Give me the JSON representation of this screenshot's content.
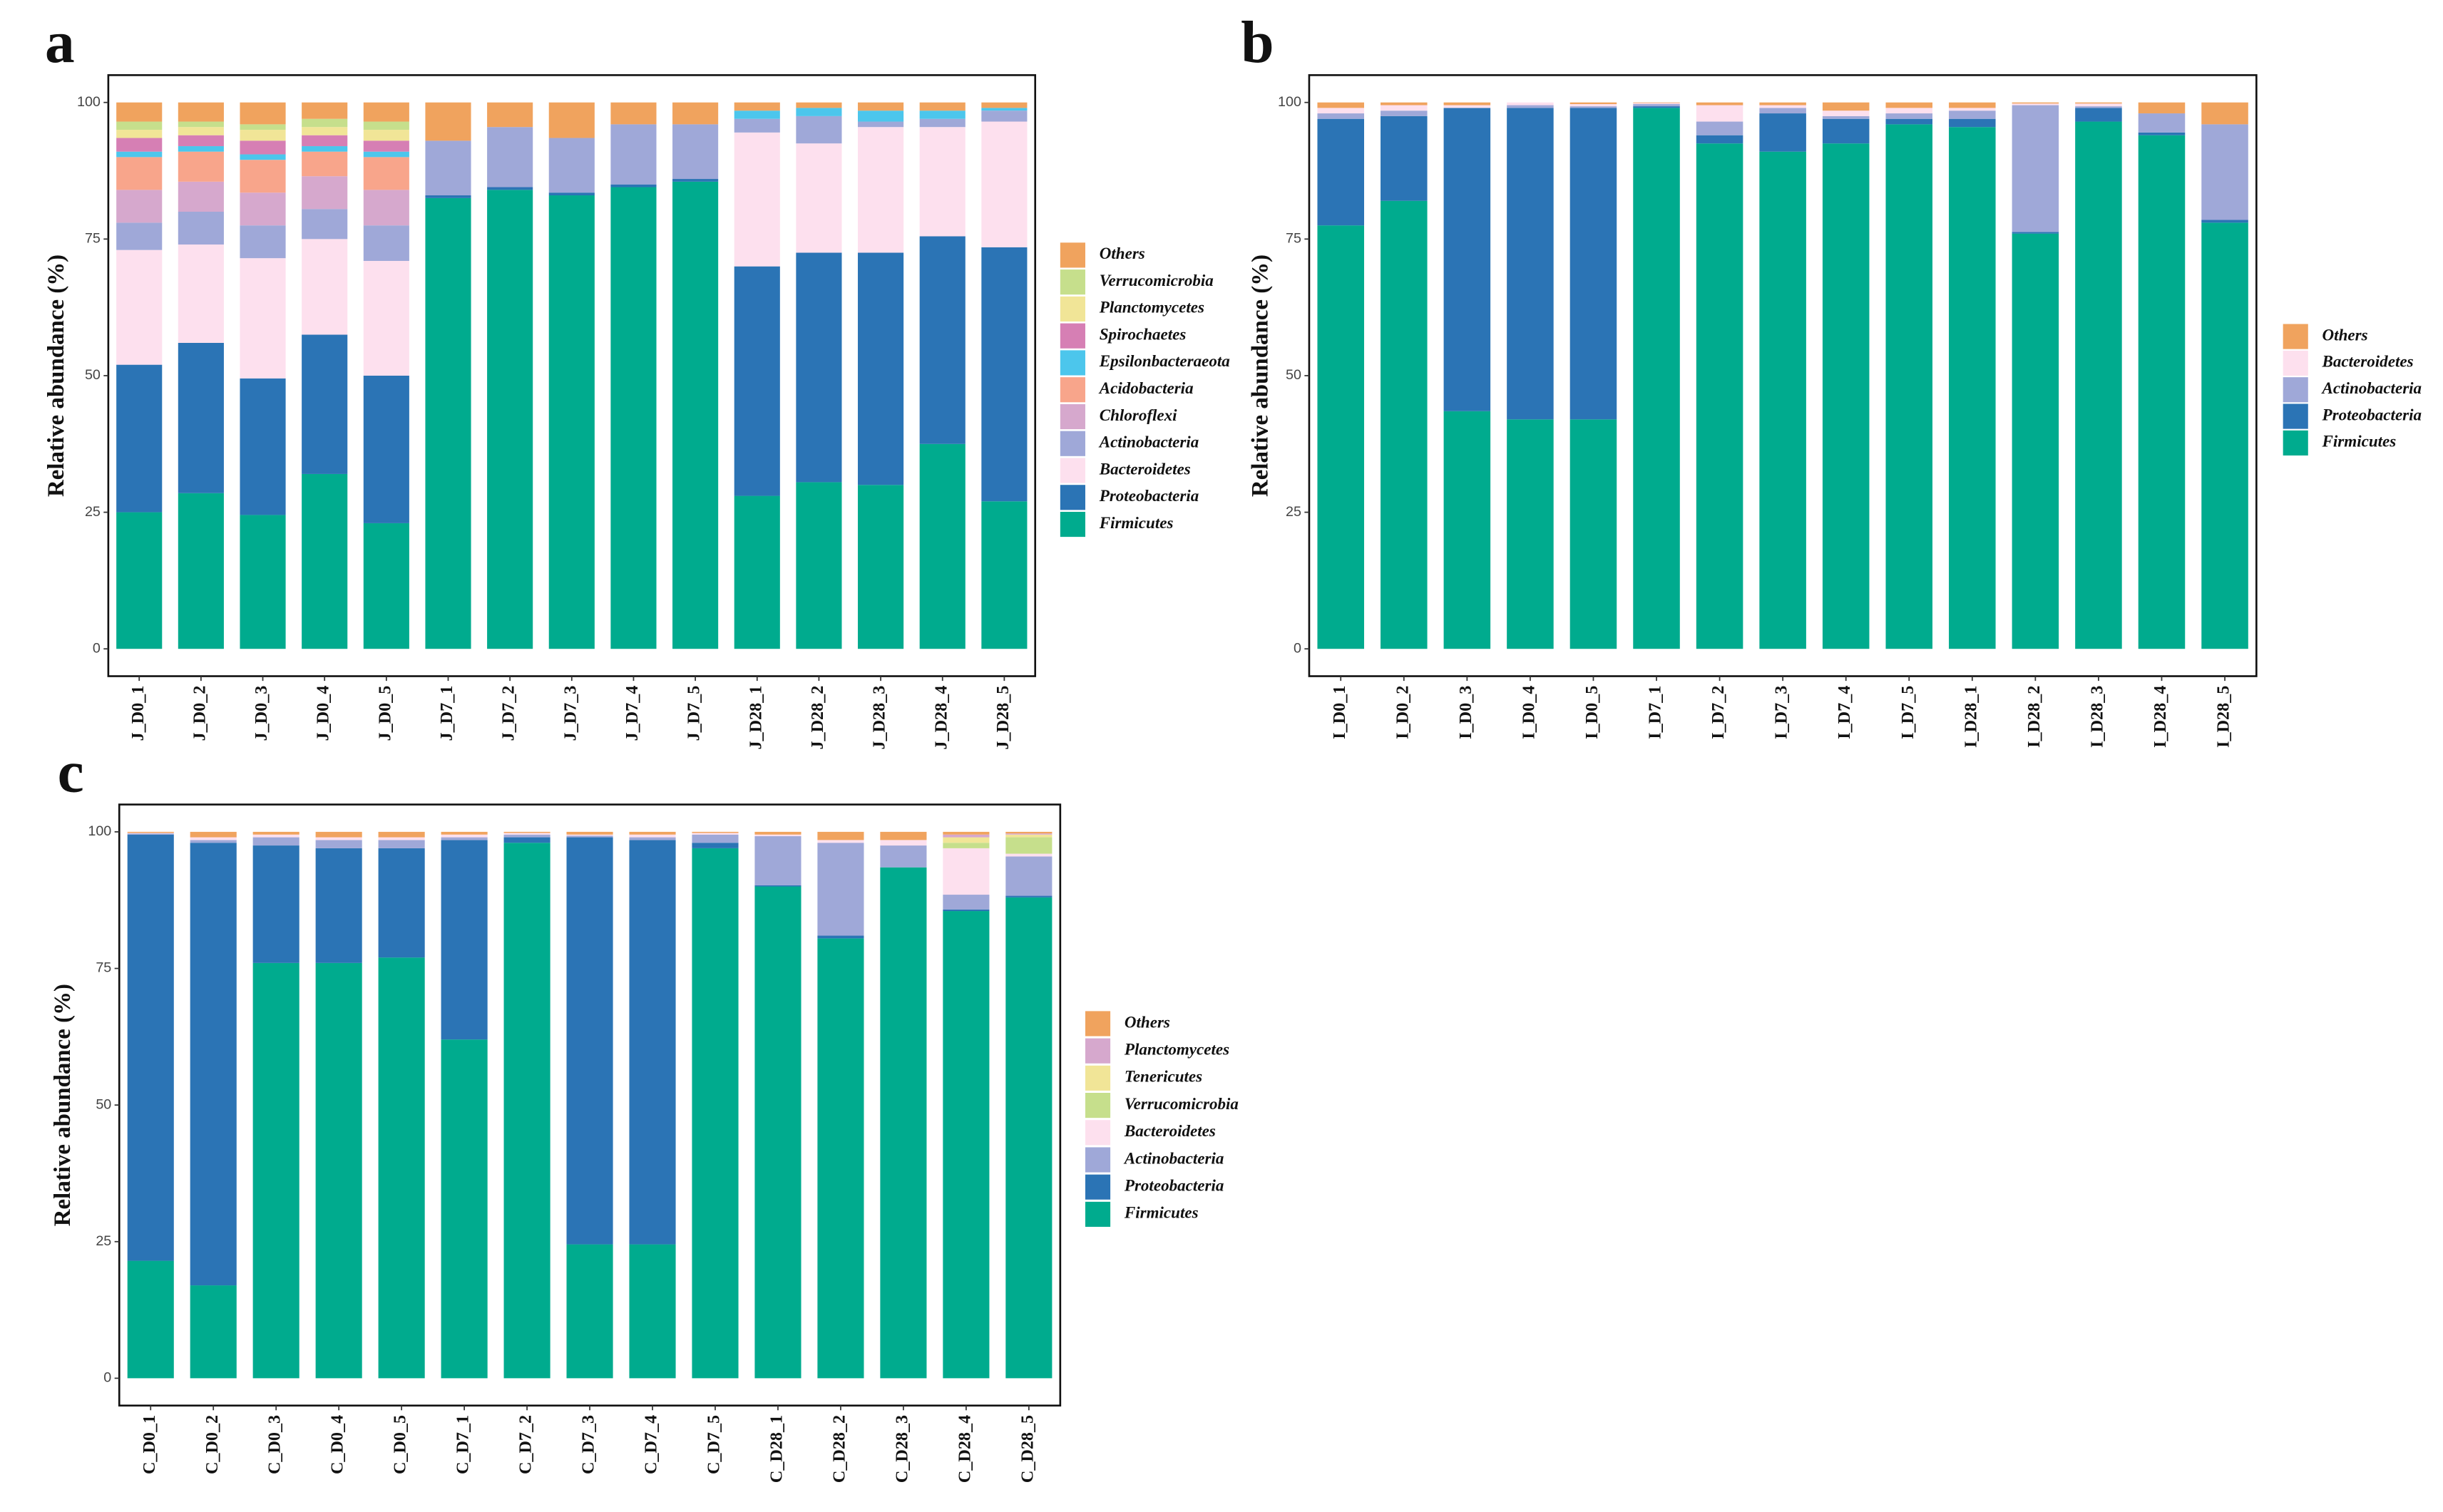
{
  "chart_data": [
    {
      "type": "bar",
      "stacked": true,
      "panel": "a",
      "ylabel": "Relative abundance (%)",
      "categories": [
        "J_D0_1",
        "J_D0_2",
        "J_D0_3",
        "J_D0_4",
        "J_D0_5",
        "J_D7_1",
        "J_D7_2",
        "J_D7_3",
        "J_D7_4",
        "J_D7_5",
        "J_D28_1",
        "J_D28_2",
        "J_D28_3",
        "J_D28_4",
        "J_D28_5"
      ],
      "series": [
        {
          "name": "Firmicutes",
          "color": "#00ab8e",
          "values": [
            25,
            28.5,
            24.5,
            32,
            23,
            82.5,
            84,
            83,
            84.5,
            85.5,
            28,
            30.5,
            30,
            37.5,
            27
          ]
        },
        {
          "name": "Proteobacteria",
          "color": "#2b74b5",
          "values": [
            27,
            27.5,
            25,
            25.5,
            27,
            0.5,
            0.5,
            0.5,
            0.5,
            0.5,
            42,
            42,
            42.5,
            38,
            46.5
          ]
        },
        {
          "name": "Bacteroidetes",
          "color": "#fde0ee",
          "values": [
            21,
            18,
            22,
            17.5,
            21,
            0,
            0,
            0,
            0,
            0,
            24.5,
            20,
            23,
            20,
            23
          ]
        },
        {
          "name": "Actinobacteria",
          "color": "#9fa8d8",
          "values": [
            5,
            6,
            6,
            5.5,
            6.5,
            10,
            11,
            10,
            11,
            10,
            2.5,
            5,
            1,
            1.5,
            2
          ]
        },
        {
          "name": "Chloroflexi",
          "color": "#d6a8cd",
          "values": [
            6,
            5.5,
            6,
            6,
            6.5,
            0,
            0,
            0,
            0,
            0,
            0,
            0,
            0,
            0,
            0
          ]
        },
        {
          "name": "Acidobacteria",
          "color": "#f8a58b",
          "values": [
            6,
            5.5,
            6,
            4.5,
            6,
            0,
            0,
            0,
            0,
            0,
            0,
            0,
            0,
            0,
            0
          ]
        },
        {
          "name": "Epsilonbacteraeota",
          "color": "#4cc6ec",
          "values": [
            1,
            1,
            1,
            1,
            1,
            0,
            0,
            0,
            0,
            0,
            1.5,
            1.5,
            2,
            1.5,
            0.5
          ]
        },
        {
          "name": "Spirochaetes",
          "color": "#d67fb4",
          "values": [
            2.5,
            2,
            2.5,
            2,
            2,
            0,
            0,
            0,
            0,
            0,
            0,
            0,
            0,
            0,
            0
          ]
        },
        {
          "name": "Planctomycetes",
          "color": "#f1e597",
          "values": [
            1.5,
            1.5,
            2,
            1.5,
            2,
            0,
            0,
            0,
            0,
            0,
            0,
            0,
            0,
            0,
            0
          ]
        },
        {
          "name": "Verrucomicrobia",
          "color": "#c6df8c",
          "values": [
            1.5,
            1,
            1,
            1.5,
            1.5,
            0,
            0,
            0,
            0,
            0,
            0,
            0,
            0,
            0,
            0
          ]
        },
        {
          "name": "Others",
          "color": "#f0a35e",
          "values": [
            3.5,
            3.5,
            4,
            3,
            3.5,
            7,
            4.5,
            6.5,
            4,
            4,
            1.5,
            1,
            1.5,
            1.5,
            1
          ]
        }
      ],
      "ylim": [
        -5,
        105
      ],
      "yticks": [
        0,
        25,
        50,
        75,
        100
      ],
      "legend": "right"
    },
    {
      "type": "bar",
      "stacked": true,
      "panel": "b",
      "ylabel": "Relative abundance (%)",
      "categories": [
        "I_D0_1",
        "I_D0_2",
        "I_D0_3",
        "I_D0_4",
        "I_D0_5",
        "I_D7_1",
        "I_D7_2",
        "I_D7_3",
        "I_D7_4",
        "I_D7_5",
        "I_D28_1",
        "I_D28_2",
        "I_D28_3",
        "I_D28_4",
        "I_D28_5"
      ],
      "series": [
        {
          "name": "Firmicutes",
          "color": "#00ab8e",
          "values": [
            77.5,
            82,
            43.5,
            42,
            42,
            99,
            92.5,
            91,
            92.5,
            96,
            95.5,
            76,
            96.5,
            94,
            78
          ]
        },
        {
          "name": "Proteobacteria",
          "color": "#2b74b5",
          "values": [
            19.5,
            15.5,
            55.5,
            57,
            57,
            0.3,
            1.5,
            7,
            4.5,
            1,
            1.5,
            0.3,
            2.5,
            0.5,
            0.5
          ]
        },
        {
          "name": "Actinobacteria",
          "color": "#9fa8d8",
          "values": [
            1,
            1,
            0,
            0.5,
            0.3,
            0.4,
            2.5,
            1,
            0.5,
            1,
            1.5,
            23.2,
            0.3,
            3.5,
            17.5
          ]
        },
        {
          "name": "Bacteroidetes",
          "color": "#fde0ee",
          "values": [
            1,
            1,
            0.5,
            0.5,
            0.4,
            0.2,
            3,
            0.5,
            1,
            1,
            0.5,
            0.3,
            0.5,
            0,
            0
          ]
        },
        {
          "name": "Others",
          "color": "#f0a35e",
          "values": [
            1,
            0.5,
            0.5,
            0,
            0.3,
            0.1,
            0.5,
            0.5,
            1.5,
            1,
            1,
            0.2,
            0.2,
            2,
            4
          ]
        }
      ],
      "ylim": [
        -5,
        105
      ],
      "yticks": [
        0,
        25,
        50,
        75,
        100
      ],
      "legend": "right"
    },
    {
      "type": "bar",
      "stacked": true,
      "panel": "c",
      "ylabel": "Relative abundance (%)",
      "categories": [
        "C_D0_1",
        "C_D0_2",
        "C_D0_3",
        "C_D0_4",
        "C_D0_5",
        "C_D7_1",
        "C_D7_2",
        "C_D7_3",
        "C_D7_4",
        "C_D7_5",
        "C_D28_1",
        "C_D28_2",
        "C_D28_3",
        "C_D28_4",
        "C_D28_5"
      ],
      "series": [
        {
          "name": "Firmicutes",
          "color": "#00ab8e",
          "values": [
            21.5,
            17,
            76,
            76,
            77,
            62,
            98,
            24.5,
            24.5,
            97,
            90,
            80.5,
            93.5,
            85.5,
            88
          ]
        },
        {
          "name": "Proteobacteria",
          "color": "#2b74b5",
          "values": [
            78,
            81,
            21.5,
            21,
            20,
            36.5,
            1,
            74.5,
            74,
            1,
            0.2,
            0.5,
            0,
            0.3,
            0.3
          ]
        },
        {
          "name": "Actinobacteria",
          "color": "#9fa8d8",
          "values": [
            0.2,
            0.5,
            1.5,
            1.5,
            1.5,
            0.5,
            0.5,
            0.3,
            0.5,
            1.5,
            9,
            17,
            4,
            2.7,
            7.2
          ]
        },
        {
          "name": "Bacteroidetes",
          "color": "#fde0ee",
          "values": [
            0.1,
            0.5,
            0.5,
            0.5,
            0.5,
            0.5,
            0.3,
            0.2,
            0.5,
            0.3,
            0.3,
            0.5,
            1,
            8.5,
            0.5
          ]
        },
        {
          "name": "Verrucomicrobia",
          "color": "#c6df8c",
          "values": [
            0,
            0,
            0,
            0,
            0,
            0,
            0,
            0,
            0,
            0,
            0,
            0,
            0,
            1,
            3
          ]
        },
        {
          "name": "Tenericutes",
          "color": "#f1e597",
          "values": [
            0,
            0,
            0,
            0,
            0,
            0,
            0,
            0,
            0,
            0,
            0,
            0,
            0,
            1,
            0.5
          ]
        },
        {
          "name": "Planctomycetes",
          "color": "#d6a8cd",
          "values": [
            0,
            0,
            0,
            0,
            0,
            0,
            0,
            0,
            0,
            0,
            0,
            0,
            0,
            0.5,
            0.2
          ]
        },
        {
          "name": "Others",
          "color": "#f0a35e",
          "values": [
            0.2,
            1,
            0.5,
            1,
            1,
            0.5,
            0.2,
            0.5,
            0.5,
            0.2,
            0.5,
            1.5,
            1.5,
            0.5,
            0.3
          ]
        }
      ],
      "ylim": [
        -5,
        105
      ],
      "yticks": [
        0,
        25,
        50,
        75,
        100
      ],
      "legend": "right"
    }
  ]
}
